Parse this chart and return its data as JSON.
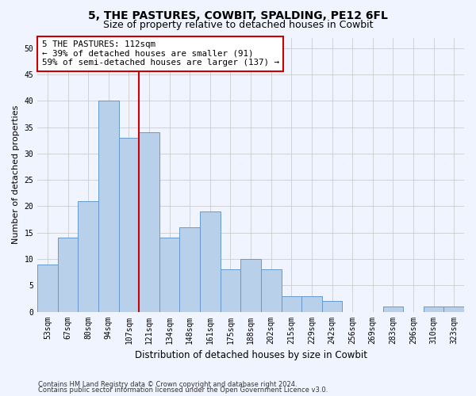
{
  "title": "5, THE PASTURES, COWBIT, SPALDING, PE12 6FL",
  "subtitle": "Size of property relative to detached houses in Cowbit",
  "xlabel": "Distribution of detached houses by size in Cowbit",
  "ylabel": "Number of detached properties",
  "categories": [
    "53sqm",
    "67sqm",
    "80sqm",
    "94sqm",
    "107sqm",
    "121sqm",
    "134sqm",
    "148sqm",
    "161sqm",
    "175sqm",
    "188sqm",
    "202sqm",
    "215sqm",
    "229sqm",
    "242sqm",
    "256sqm",
    "269sqm",
    "283sqm",
    "296sqm",
    "310sqm",
    "323sqm"
  ],
  "values": [
    9,
    14,
    21,
    40,
    33,
    34,
    14,
    16,
    19,
    8,
    10,
    8,
    3,
    3,
    2,
    0,
    0,
    1,
    0,
    1,
    1
  ],
  "bar_color": "#b8d0ea",
  "bar_edge_color": "#6699cc",
  "property_line_x": 4.5,
  "property_line_color": "#cc0000",
  "ann_line1": "5 THE PASTURES: 112sqm",
  "ann_line2": "← 39% of detached houses are smaller (91)",
  "ann_line3": "59% of semi-detached houses are larger (137) →",
  "annotation_box_color": "#ffffff",
  "annotation_box_edge": "#cc0000",
  "ylim": [
    0,
    52
  ],
  "yticks": [
    0,
    5,
    10,
    15,
    20,
    25,
    30,
    35,
    40,
    45,
    50
  ],
  "footnote1": "Contains HM Land Registry data © Crown copyright and database right 2024.",
  "footnote2": "Contains public sector information licensed under the Open Government Licence v3.0.",
  "bg_color": "#f0f4ff",
  "grid_color": "#cccccc",
  "title_fontsize": 10,
  "subtitle_fontsize": 9,
  "tick_fontsize": 7,
  "xlabel_fontsize": 8.5,
  "ylabel_fontsize": 8,
  "annotation_fontsize": 7.8,
  "footnote_fontsize": 6
}
